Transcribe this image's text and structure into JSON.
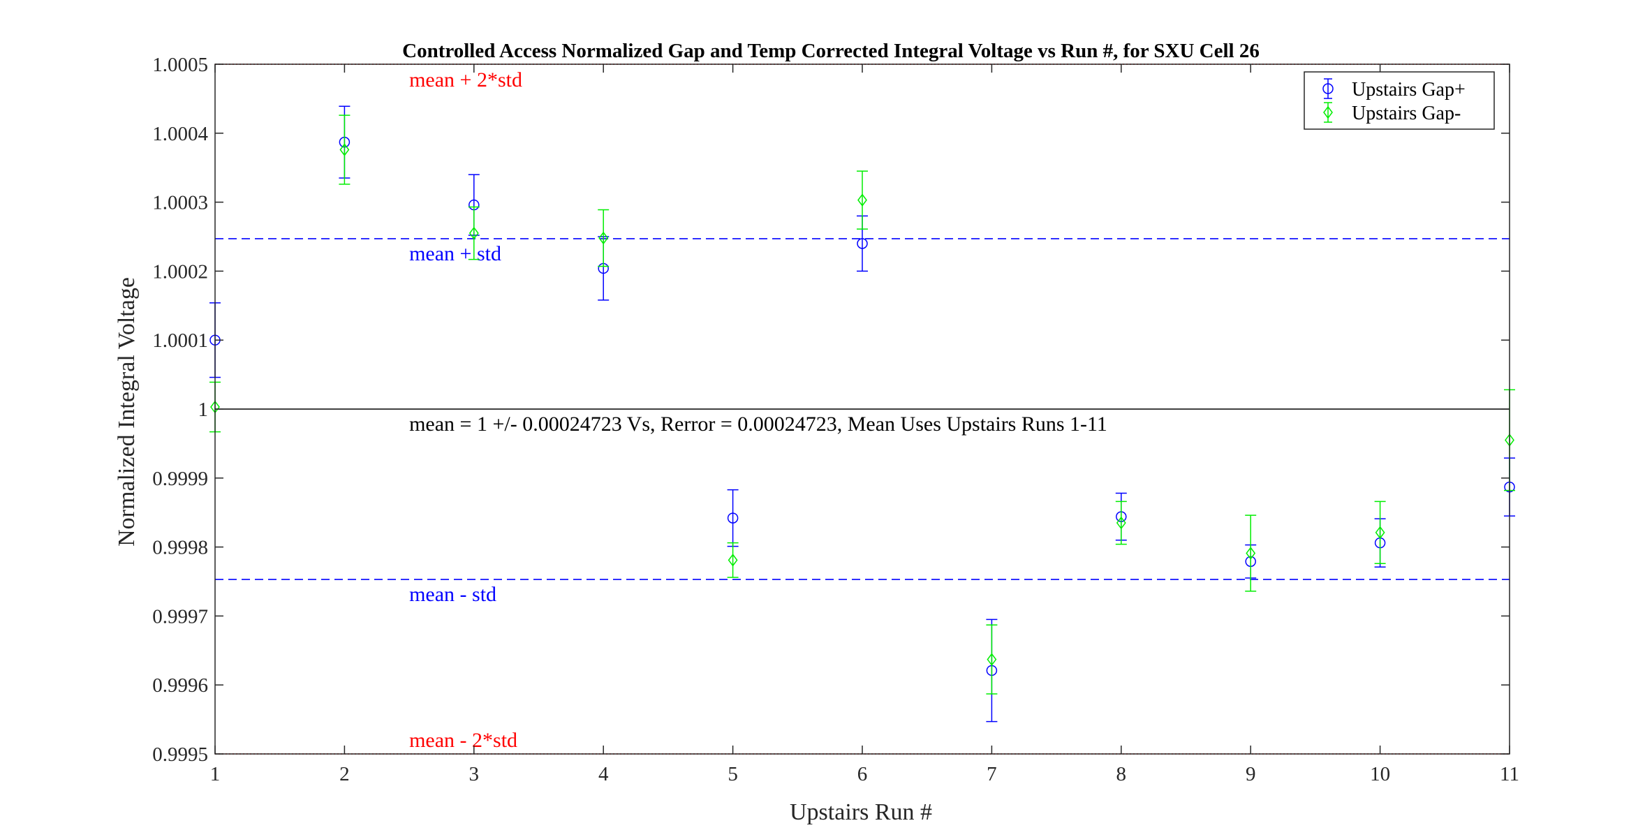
{
  "chart_data": {
    "type": "scatter",
    "title": "Controlled Access Normalized Gap and Temp Corrected Integral Voltage vs Run #, for SXU Cell 26",
    "xlabel": "Upstairs Run #",
    "ylabel": "Normalized Integral Voltage",
    "xlim": [
      1,
      11
    ],
    "ylim": [
      0.9995,
      1.0005
    ],
    "x_ticks": [
      "1",
      "2",
      "3",
      "4",
      "5",
      "6",
      "7",
      "8",
      "9",
      "10",
      "11"
    ],
    "y_ticks": [
      {
        "value": 0.9995,
        "label": "0.9995"
      },
      {
        "value": 0.9996,
        "label": "0.9996"
      },
      {
        "value": 0.9997,
        "label": "0.9997"
      },
      {
        "value": 0.9998,
        "label": "0.9998"
      },
      {
        "value": 0.9999,
        "label": "0.9999"
      },
      {
        "value": 1.0,
        "label": "1"
      },
      {
        "value": 1.0001,
        "label": "1.0001"
      },
      {
        "value": 1.0002,
        "label": "1.0002"
      },
      {
        "value": 1.0003,
        "label": "1.0003"
      },
      {
        "value": 1.0004,
        "label": "1.0004"
      },
      {
        "value": 1.0005,
        "label": "1.0005"
      }
    ],
    "grid": false,
    "legend_position": "top-right",
    "series": [
      {
        "name": "Upstairs Gap+",
        "color": "#0000ff",
        "marker": "circle",
        "x": [
          1,
          2,
          3,
          4,
          5,
          6,
          7,
          8,
          9,
          10,
          11
        ],
        "y": [
          1.0001,
          1.000387,
          1.000296,
          1.000204,
          0.999842,
          1.00024,
          0.999621,
          0.999844,
          0.999779,
          0.999806,
          0.999887
        ],
        "err": [
          5.4e-05,
          5.2e-05,
          4.4e-05,
          4.6e-05,
          4.1e-05,
          4e-05,
          7.4e-05,
          3.4e-05,
          2.4e-05,
          3.5e-05,
          4.2e-05
        ]
      },
      {
        "name": "Upstairs Gap-",
        "color": "#00ee00",
        "marker": "diamond",
        "x": [
          1,
          2,
          3,
          4,
          5,
          6,
          7,
          8,
          9,
          10,
          11
        ],
        "y": [
          1.000003,
          1.000376,
          1.000255,
          1.000248,
          0.999781,
          1.000303,
          0.999637,
          0.999835,
          0.999791,
          0.999821,
          0.999955
        ],
        "err": [
          3.6e-05,
          5e-05,
          3.8e-05,
          4.1e-05,
          2.5e-05,
          4.2e-05,
          5e-05,
          3.1e-05,
          5.5e-05,
          4.5e-05,
          7.3e-05
        ]
      }
    ],
    "reference_lines": [
      {
        "y": 1.0005,
        "style": "dotted",
        "color": "#ff0000",
        "label": "mean + 2*std"
      },
      {
        "y": 1.000247,
        "style": "dashed",
        "color": "#0000ff",
        "label": "mean + std"
      },
      {
        "y": 1.0,
        "style": "solid",
        "color": "#000000",
        "label": "mean = 1 +/- 0.00024723 Vs, Rerror = 0.00024723, Mean Uses Upstairs Runs 1-11"
      },
      {
        "y": 0.999753,
        "style": "dashed",
        "color": "#0000ff",
        "label": "mean - std"
      },
      {
        "y": 0.9995,
        "style": "dotted",
        "color": "#ff0000",
        "label": "mean - 2*std"
      }
    ]
  }
}
